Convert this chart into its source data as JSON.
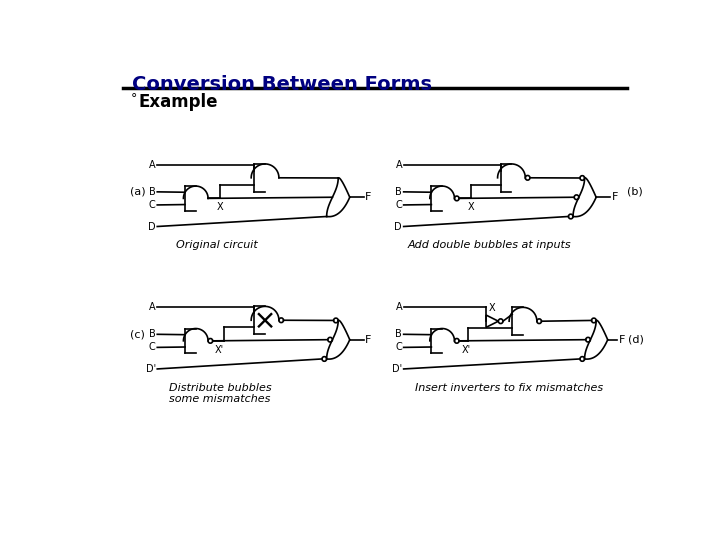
{
  "title": "Conversion Between Forms",
  "subtitle": "Example",
  "bg_color": "#ffffff",
  "title_color": "#000080",
  "line_color": "#000000",
  "captions": {
    "a": "Original circuit",
    "b": "Add double bubbles at inputs",
    "c": "Distribute bubbles\nsome mismatches",
    "d": "Insert inverters to fix mismatches"
  }
}
